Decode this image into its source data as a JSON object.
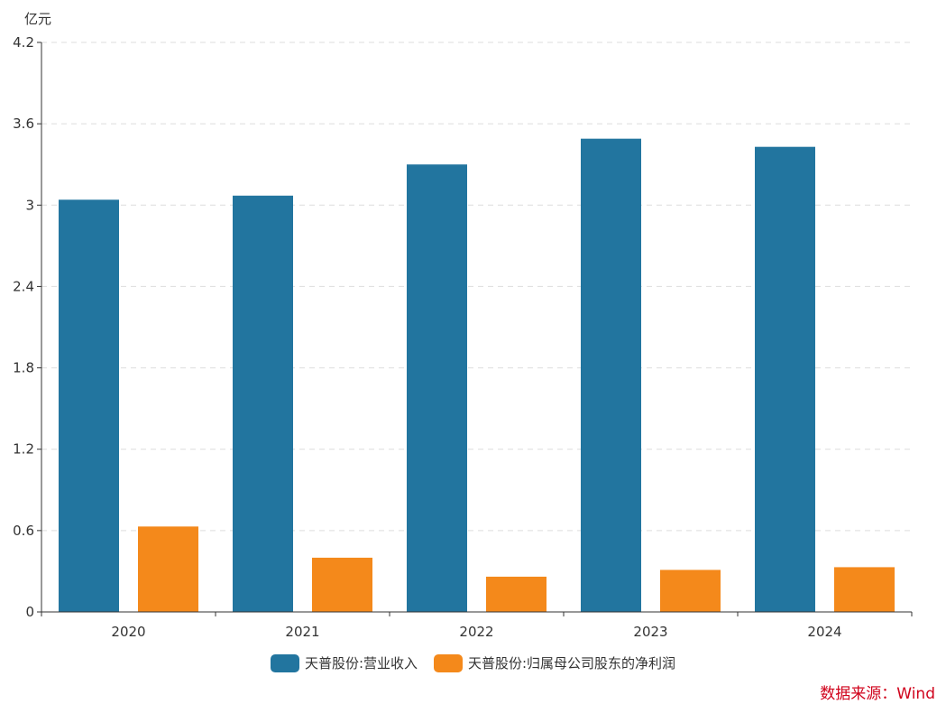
{
  "chart_data": {
    "type": "bar",
    "unit": "亿元",
    "categories": [
      "2020",
      "2021",
      "2022",
      "2023",
      "2024"
    ],
    "series": [
      {
        "name": "天普股份:营业收入",
        "color": "#22759f",
        "values": [
          3.04,
          3.07,
          3.3,
          3.49,
          3.43
        ]
      },
      {
        "name": "天普股份:归属母公司股东的净利润",
        "color": "#f4891b",
        "values": [
          0.63,
          0.4,
          0.26,
          0.31,
          0.33
        ]
      }
    ],
    "ylim": [
      0,
      4.2
    ],
    "yticks": [
      "0",
      "0.6",
      "1.2",
      "1.8",
      "2.4",
      "3",
      "3.6",
      "4.2"
    ],
    "grid": true,
    "legend_position": "bottom"
  },
  "source": "数据来源：Wind"
}
